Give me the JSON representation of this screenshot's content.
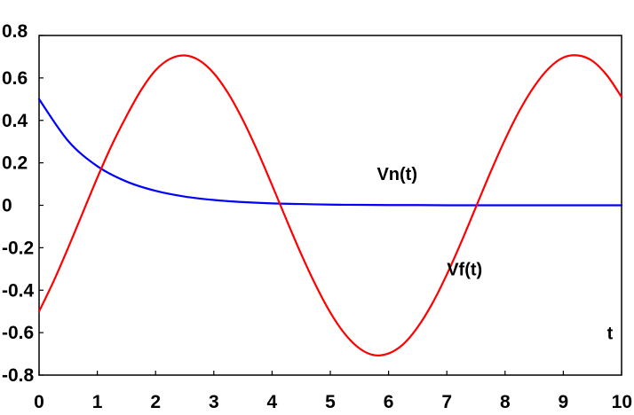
{
  "chart_data": {
    "type": "line",
    "title": "",
    "xlabel": "",
    "ylabel": "",
    "xlim": [
      0,
      10
    ],
    "ylim": [
      -0.8,
      0.8
    ],
    "x_ticks": [
      {
        "value": 0,
        "label": "0"
      },
      {
        "value": 1,
        "label": "1"
      },
      {
        "value": 2,
        "label": "2"
      },
      {
        "value": 3,
        "label": "3"
      },
      {
        "value": 4,
        "label": "4"
      },
      {
        "value": 5,
        "label": "5"
      },
      {
        "value": 6,
        "label": "6"
      },
      {
        "value": 7,
        "label": "7"
      },
      {
        "value": 8,
        "label": "8"
      },
      {
        "value": 9,
        "label": "9"
      },
      {
        "value": 10,
        "label": "10"
      }
    ],
    "y_ticks": [
      {
        "value": 0.8,
        "label": "0.8"
      },
      {
        "value": 0.6,
        "label": "0.6"
      },
      {
        "value": 0.4,
        "label": "0.4"
      },
      {
        "value": 0.2,
        "label": "0.2"
      },
      {
        "value": 0,
        "label": "0"
      },
      {
        "value": -0.2,
        "label": "-0.2"
      },
      {
        "value": -0.4,
        "label": "-0.4"
      },
      {
        "value": -0.6,
        "label": "-0.6"
      },
      {
        "value": -0.8,
        "label": "-0.8"
      }
    ],
    "grid": false,
    "series": [
      {
        "color": "#0000ff",
        "x": [
          0,
          0.5,
          1,
          1.5,
          2,
          2.5,
          3,
          3.5,
          4,
          4.5,
          5,
          5.5,
          6,
          6.5,
          7,
          7.5,
          8,
          8.5,
          9,
          9.5,
          10
        ],
        "y": [
          0.5,
          0.303,
          0.184,
          0.112,
          0.068,
          0.041,
          0.025,
          0.015,
          0.009,
          0.006,
          0.003,
          0.002,
          0.001,
          0.001,
          0,
          0,
          0,
          0,
          0,
          0,
          0
        ]
      },
      {
        "color": "#ff0000",
        "x": [
          0,
          0.25,
          0.5,
          0.75,
          1,
          1.25,
          1.5,
          1.75,
          2,
          2.25,
          2.5,
          2.75,
          3,
          3.25,
          3.5,
          3.75,
          4,
          4.25,
          4.5,
          4.75,
          5,
          5.25,
          5.5,
          5.75,
          6,
          6.25,
          6.5,
          6.75,
          7,
          7.25,
          7.5,
          7.75,
          8,
          8.25,
          8.5,
          8.75,
          9,
          9.25,
          9.5,
          9.75,
          10
        ],
        "y": [
          -0.5,
          -0.358,
          -0.2,
          -0.035,
          0.13,
          0.284,
          0.42,
          0.542,
          0.636,
          0.69,
          0.706,
          0.683,
          0.622,
          0.526,
          0.401,
          0.255,
          0.095,
          -0.07,
          -0.23,
          -0.377,
          -0.505,
          -0.606,
          -0.674,
          -0.706,
          -0.698,
          -0.655,
          -0.574,
          -0.463,
          -0.326,
          -0.172,
          -0.008,
          0.156,
          0.31,
          0.447,
          0.56,
          0.645,
          0.696,
          0.706,
          0.68,
          0.612,
          0.51
        ]
      }
    ],
    "annotations": [
      {
        "text": "Vn(t)",
        "x": 5.8,
        "y": 0.12
      },
      {
        "text": "Vf(t)",
        "x": 7.0,
        "y": -0.33
      },
      {
        "text": "t",
        "x": 9.75,
        "y": -0.63
      }
    ]
  }
}
